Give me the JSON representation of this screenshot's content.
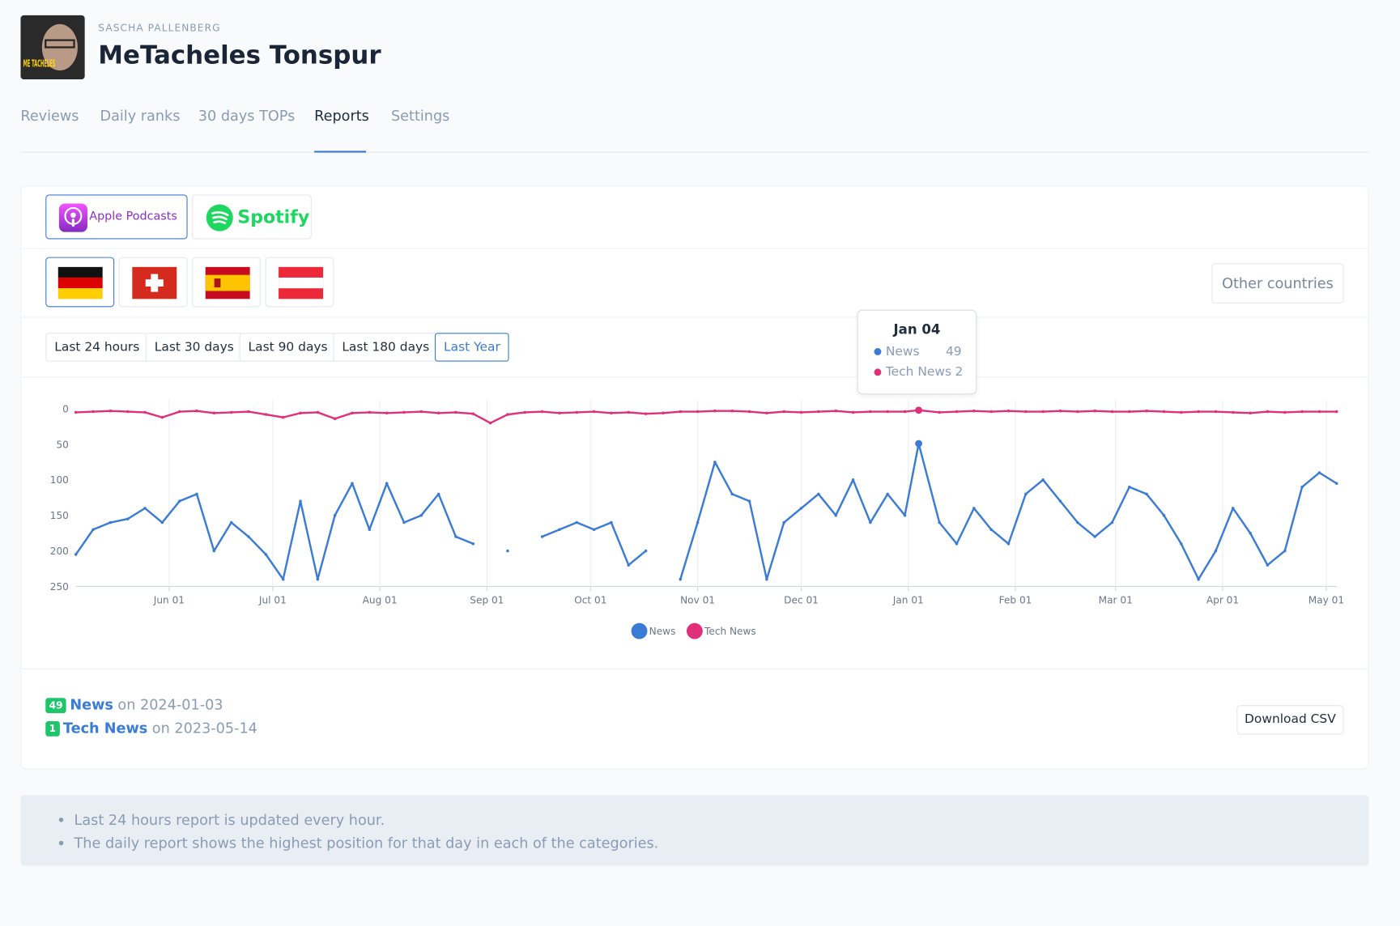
{
  "header": {
    "author": "SASCHA PALLENBERG",
    "title": "MeTacheles Tonspur",
    "avatar_text": "ME TACHELES"
  },
  "tabs": [
    "Reviews",
    "Daily ranks",
    "30 days TOPs",
    "Reports",
    "Settings"
  ],
  "active_tab": 3,
  "platforms": [
    "Apple Podcasts",
    "Spotify"
  ],
  "other_countries": "Other countries",
  "ranges": [
    "Last 24 hours",
    "Last 30 days",
    "Last 90 days",
    "Last 180 days",
    "Last Year"
  ],
  "active_range": 4,
  "chart_data": {
    "type": "line",
    "y_inverted": true,
    "grid": "x",
    "x": [
      "2023-05-05",
      "2023-05-10",
      "2023-05-15",
      "2023-05-20",
      "2023-05-25",
      "2023-05-30",
      "2023-06-04",
      "2023-06-09",
      "2023-06-14",
      "2023-06-19",
      "2023-06-24",
      "2023-06-29",
      "2023-07-04",
      "2023-07-09",
      "2023-07-14",
      "2023-07-19",
      "2023-07-24",
      "2023-07-29",
      "2023-08-03",
      "2023-08-08",
      "2023-08-13",
      "2023-08-18",
      "2023-08-23",
      "2023-08-28",
      "2023-09-02",
      "2023-09-07",
      "2023-09-12",
      "2023-09-17",
      "2023-09-22",
      "2023-09-27",
      "2023-10-02",
      "2023-10-07",
      "2023-10-12",
      "2023-10-17",
      "2023-10-22",
      "2023-10-27",
      "2023-11-01",
      "2023-11-06",
      "2023-11-11",
      "2023-11-16",
      "2023-11-21",
      "2023-11-26",
      "2023-12-01",
      "2023-12-06",
      "2023-12-11",
      "2023-12-16",
      "2023-12-21",
      "2023-12-26",
      "2023-12-31",
      "2024-01-04",
      "2024-01-10",
      "2024-01-15",
      "2024-01-20",
      "2024-01-25",
      "2024-01-30",
      "2024-02-04",
      "2024-02-09",
      "2024-02-14",
      "2024-02-19",
      "2024-02-24",
      "2024-02-29",
      "2024-03-05",
      "2024-03-10",
      "2024-03-15",
      "2024-03-20",
      "2024-03-25",
      "2024-03-30",
      "2024-04-04",
      "2024-04-09",
      "2024-04-14",
      "2024-04-19",
      "2024-04-24",
      "2024-04-29",
      "2024-05-04"
    ],
    "series": [
      {
        "name": "News",
        "color": "#3a7bd5",
        "values": [
          205,
          170,
          160,
          155,
          140,
          160,
          130,
          120,
          200,
          160,
          180,
          205,
          240,
          130,
          240,
          150,
          105,
          170,
          105,
          160,
          150,
          120,
          180,
          190,
          null,
          200,
          null,
          180,
          170,
          160,
          170,
          160,
          220,
          200,
          null,
          240,
          160,
          75,
          120,
          130,
          240,
          160,
          140,
          120,
          150,
          100,
          160,
          120,
          150,
          49,
          160,
          190,
          140,
          170,
          190,
          120,
          100,
          130,
          160,
          180,
          160,
          110,
          120,
          150,
          190,
          240,
          200,
          140,
          175,
          220,
          200,
          110,
          90,
          105
        ]
      },
      {
        "name": "Tech News",
        "color": "#e0307a",
        "values": [
          5,
          4,
          3,
          4,
          5,
          12,
          4,
          3,
          6,
          5,
          4,
          8,
          12,
          6,
          5,
          14,
          6,
          5,
          6,
          5,
          4,
          6,
          5,
          7,
          20,
          8,
          5,
          4,
          6,
          5,
          4,
          6,
          5,
          7,
          6,
          4,
          4,
          3,
          3,
          4,
          6,
          4,
          5,
          4,
          3,
          5,
          4,
          4,
          4,
          2,
          5,
          4,
          3,
          4,
          3,
          4,
          4,
          3,
          4,
          3,
          4,
          4,
          3,
          4,
          5,
          4,
          4,
          5,
          6,
          4,
          5,
          4,
          4,
          4
        ]
      }
    ],
    "xlim": [
      "2023-05-05",
      "2024-05-04"
    ],
    "xticks": [
      {
        "value": "2023-06-01",
        "label": "Jun 01"
      },
      {
        "value": "2023-07-01",
        "label": "Jul 01"
      },
      {
        "value": "2023-08-01",
        "label": "Aug 01"
      },
      {
        "value": "2023-09-01",
        "label": "Sep 01"
      },
      {
        "value": "2023-10-01",
        "label": "Oct 01"
      },
      {
        "value": "2023-11-01",
        "label": "Nov 01"
      },
      {
        "value": "2023-12-01",
        "label": "Dec 01"
      },
      {
        "value": "2024-01-01",
        "label": "Jan 01"
      },
      {
        "value": "2024-02-01",
        "label": "Feb 01"
      },
      {
        "value": "2024-03-01",
        "label": "Mar 01"
      },
      {
        "value": "2024-04-01",
        "label": "Apr 01"
      },
      {
        "value": "2024-05-01",
        "label": "May 01"
      }
    ],
    "ylim": [
      0,
      250
    ],
    "yticks": [
      0,
      50,
      100,
      150,
      200,
      250
    ],
    "tooltip": {
      "label": "Jan 04",
      "index": 49
    }
  },
  "summary": [
    {
      "rank": 49,
      "name": "News",
      "when": "on 2024-01-03"
    },
    {
      "rank": 1,
      "name": "Tech News",
      "when": "on 2023-05-14"
    }
  ],
  "download": "Download CSV",
  "notes": [
    "Last 24 hours report is updated every hour.",
    "The daily report shows the highest position for that day in each of the categories."
  ]
}
